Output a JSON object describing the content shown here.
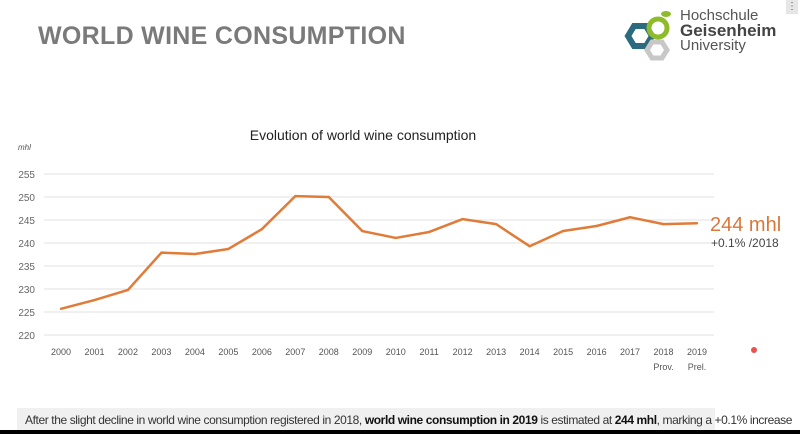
{
  "header": {
    "title": "WORLD WINE CONSUMPTION",
    "logo": {
      "line1": "Hochschule",
      "line2": "Geisenheim",
      "line3": "University"
    },
    "menu_icon": "kebab-icon"
  },
  "chart_data": {
    "type": "line",
    "title": "Evolution of world wine consumption",
    "ylabel": "mhl",
    "xlabel": "",
    "ylim": [
      220,
      255
    ],
    "yticks": [
      220,
      225,
      230,
      235,
      240,
      245,
      250,
      255
    ],
    "grid": true,
    "categories": [
      "2000",
      "2001",
      "2002",
      "2003",
      "2004",
      "2005",
      "2006",
      "2007",
      "2008",
      "2009",
      "2010",
      "2011",
      "2012",
      "2013",
      "2014",
      "2015",
      "2016",
      "2017",
      "2018",
      "2019"
    ],
    "category_sublabels": {
      "2018": "Prov.",
      "2019": "Prel."
    },
    "values": [
      225.7,
      227.6,
      229.8,
      237.9,
      237.6,
      238.7,
      243.0,
      250.2,
      250.0,
      242.6,
      241.1,
      242.4,
      245.2,
      244.1,
      239.3,
      242.6,
      243.7,
      245.6,
      244.1,
      244.3
    ],
    "color": "#e07b39",
    "annotation": {
      "value": "244 mhl",
      "change": "+0.1% /2018"
    }
  },
  "footer": {
    "t1": "After the slight decline in world wine consumption registered in 2018, ",
    "b1": "world wine consumption in 2019",
    "t2": " is estimated at ",
    "b2": "244 mhl",
    "t3": ", marking a +0.1% increase"
  }
}
